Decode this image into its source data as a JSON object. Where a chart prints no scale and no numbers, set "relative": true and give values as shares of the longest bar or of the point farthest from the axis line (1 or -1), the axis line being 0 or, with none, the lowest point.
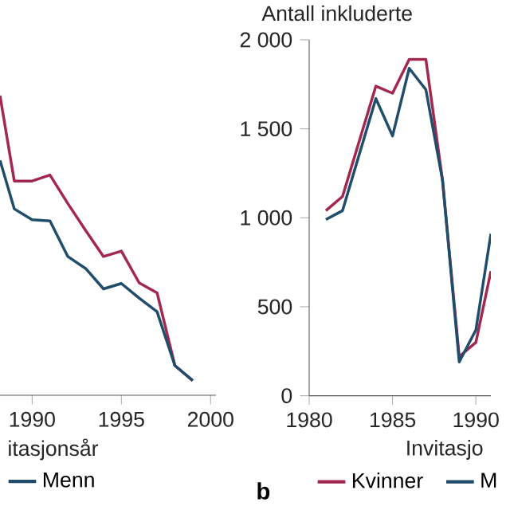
{
  "chart_data": [
    {
      "type": "line",
      "relative": true,
      "xlabel": "itasjonsår",
      "x": [
        1988.2,
        1989,
        1990,
        1991,
        1992,
        1993,
        1994,
        1995,
        1996,
        1997,
        1998,
        1999
      ],
      "xlim": [
        1988.2,
        2000.3
      ],
      "xticks": [
        1990,
        1995,
        2000
      ],
      "legend": "bottom",
      "grid": false,
      "series": [
        {
          "color": "#a3284f",
          "values": [
            1,
            0.715,
            0.715,
            0.735,
            0.64,
            0.55,
            0.463,
            0.481,
            0.375,
            0.342,
            0.099,
            0.049
          ]
        },
        {
          "name": "Menn",
          "color": "#1f4d6b",
          "values": [
            0.784,
            0.622,
            0.586,
            0.582,
            0.463,
            0.423,
            0.355,
            0.373,
            0.324,
            0.279,
            0.099,
            0.049
          ]
        }
      ]
    },
    {
      "type": "line",
      "xlabel": "Invitasjo",
      "ylabel": "Antall inkluderte",
      "x": [
        1981,
        1982,
        1984,
        1985,
        1986,
        1987,
        1988,
        1989,
        1990,
        1990.9
      ],
      "xlim": [
        1980,
        1990.9
      ],
      "ylim": [
        0,
        2000
      ],
      "xticks": [
        1980,
        1985,
        1990
      ],
      "yticks": [
        0,
        500,
        {
          "value": 1000,
          "label": "1 000"
        },
        {
          "value": 1500,
          "label": "1 500"
        },
        {
          "value": 2000,
          "label": "2 000"
        }
      ],
      "legend": "bottom",
      "grid": false,
      "annotations": [
        "b"
      ],
      "series": [
        {
          "name": "Kvinner",
          "color": "#a3284f",
          "values": [
            1040,
            1120,
            1740,
            1700,
            1890,
            1890,
            1210,
            220,
            300,
            700
          ]
        },
        {
          "name": "M",
          "color": "#1f4d6b",
          "values": [
            990,
            1040,
            1670,
            1460,
            1840,
            1720,
            1210,
            190,
            370,
            910
          ]
        }
      ]
    }
  ]
}
